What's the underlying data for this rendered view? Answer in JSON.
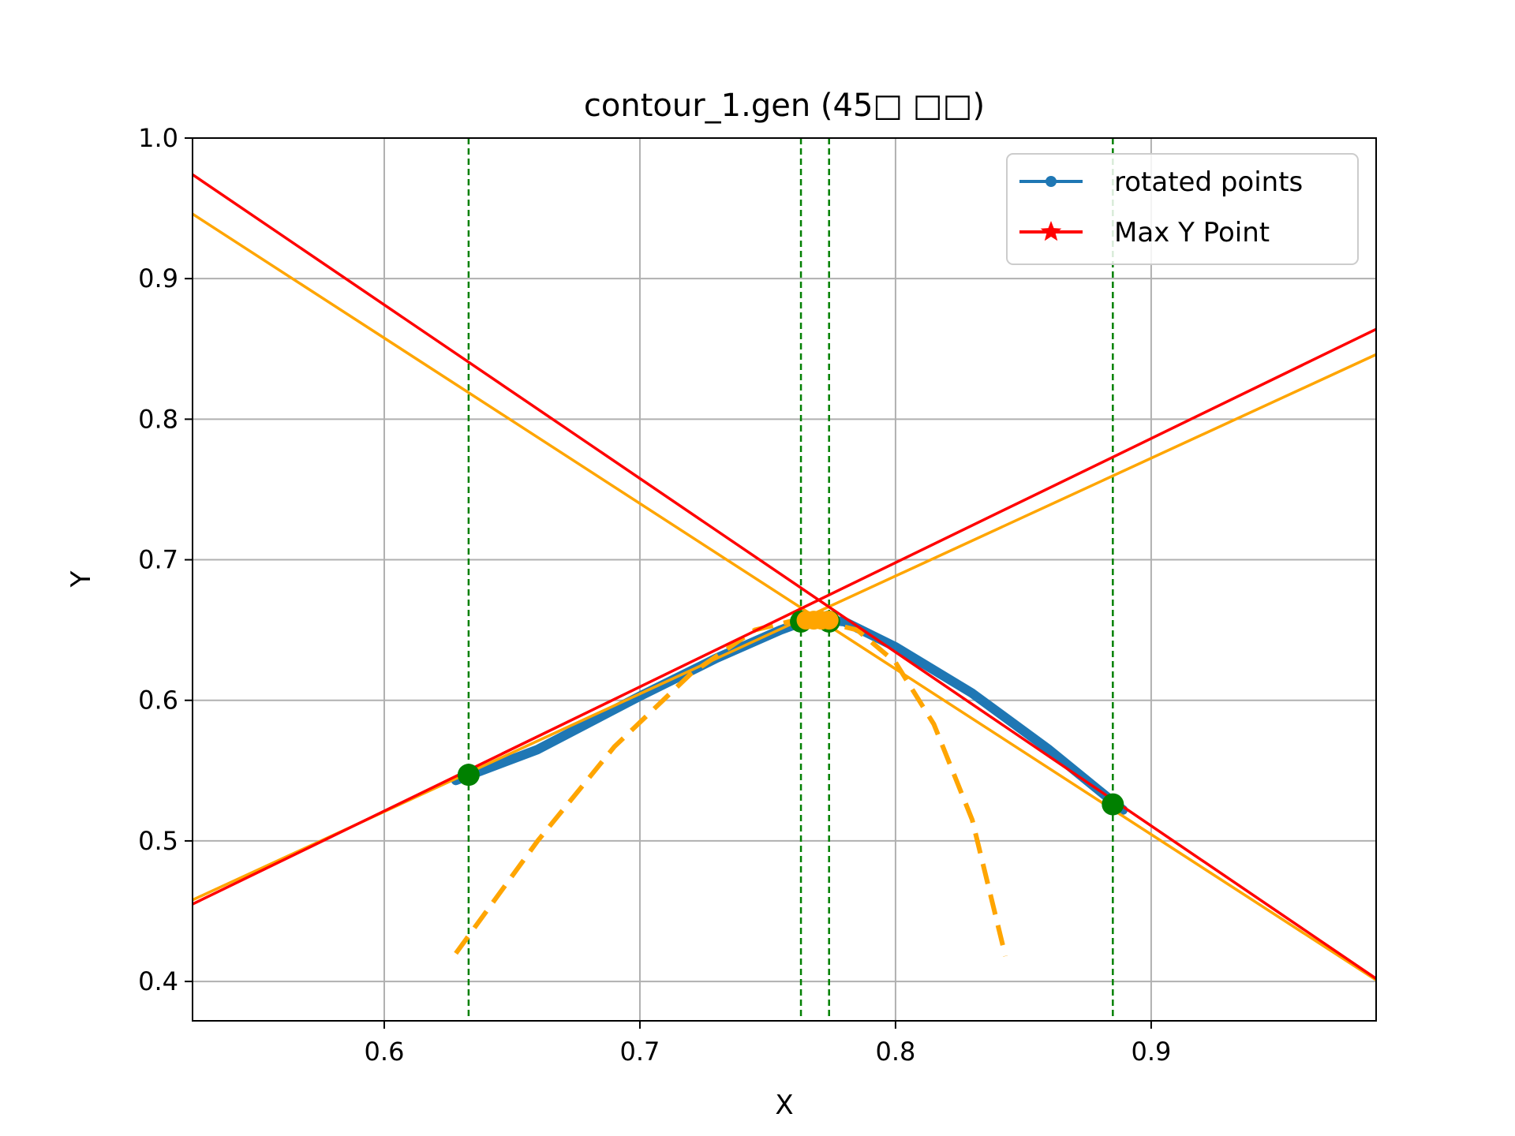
{
  "chart_data": {
    "type": "line",
    "title": "contour_1.gen (45□ □□)",
    "xlabel": "X",
    "ylabel": "Y",
    "xlim": [
      0.525,
      0.988
    ],
    "ylim": [
      0.372,
      1.0
    ],
    "xticks": [
      "0.6",
      "0.7",
      "0.8",
      "0.9"
    ],
    "yticks": [
      "0.4",
      "0.5",
      "0.6",
      "0.7",
      "0.8",
      "0.9",
      "1.0"
    ],
    "grid": true,
    "legend_position": "top-right",
    "legend": [
      {
        "label": "rotated points",
        "color": "#1f77b4",
        "marker": "circle"
      },
      {
        "label": "Max Y Point",
        "color": "#ff0000",
        "marker": "star"
      }
    ],
    "colors": {
      "rotated": "#1f77b4",
      "red": "#ff0000",
      "orange": "#ffa500",
      "green": "#008000",
      "grid": "#b0b0b0"
    },
    "series": [
      {
        "kind": "curve",
        "color": "#1f77b4",
        "width": 12,
        "x": [
          0.628,
          0.66,
          0.7,
          0.73,
          0.755,
          0.767,
          0.78,
          0.8,
          0.83,
          0.86,
          0.889
        ],
        "y": [
          0.543,
          0.565,
          0.603,
          0.63,
          0.65,
          0.658,
          0.656,
          0.638,
          0.605,
          0.565,
          0.522
        ]
      },
      {
        "kind": "line",
        "color": "#ffa500",
        "width": 3.5,
        "x": [
          0.525,
          0.988
        ],
        "y": [
          0.946,
          0.401
        ]
      },
      {
        "kind": "line",
        "color": "#ffa500",
        "width": 3.5,
        "x": [
          0.525,
          0.988
        ],
        "y": [
          0.458,
          0.846
        ]
      },
      {
        "kind": "line",
        "color": "#ff0000",
        "width": 3.5,
        "x": [
          0.525,
          0.988
        ],
        "y": [
          0.974,
          0.402
        ]
      },
      {
        "kind": "line",
        "color": "#ff0000",
        "width": 3.5,
        "x": [
          0.525,
          0.988
        ],
        "y": [
          0.455,
          0.864
        ]
      },
      {
        "kind": "dashed-curve",
        "color": "#ffa500",
        "width": 6,
        "x": [
          0.628,
          0.66,
          0.69,
          0.72,
          0.745,
          0.765,
          0.785,
          0.8,
          0.815,
          0.83,
          0.843
        ],
        "y": [
          0.42,
          0.5,
          0.567,
          0.619,
          0.65,
          0.659,
          0.65,
          0.627,
          0.583,
          0.515,
          0.418
        ]
      }
    ],
    "vlines": {
      "color": "#008000",
      "x": [
        0.633,
        0.763,
        0.774,
        0.885
      ]
    },
    "green_points": {
      "x": [
        0.633,
        0.763,
        0.774,
        0.885
      ],
      "y": [
        0.547,
        0.656,
        0.656,
        0.526
      ]
    },
    "orange_points": {
      "x": [
        0.765,
        0.768,
        0.771,
        0.774
      ],
      "y": [
        0.657,
        0.657,
        0.657,
        0.657
      ]
    }
  }
}
